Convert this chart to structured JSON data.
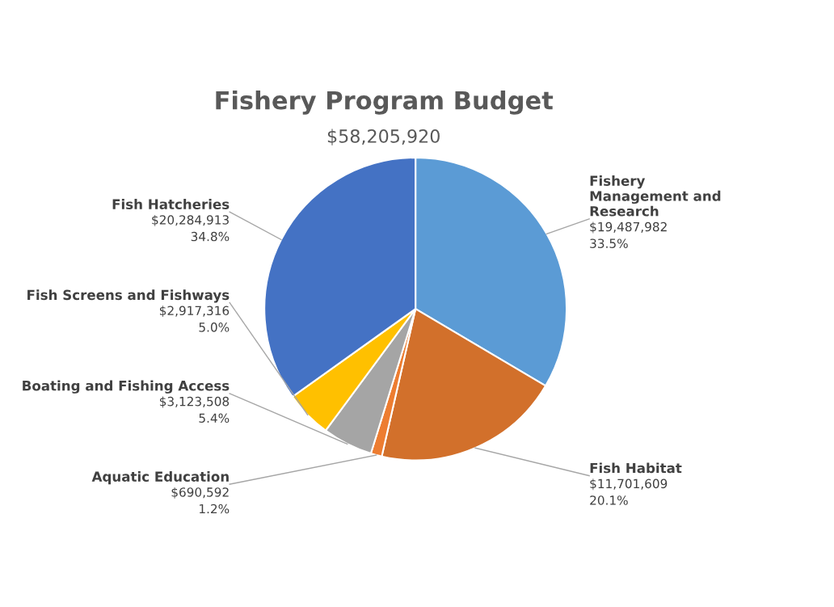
{
  "chart_data": {
    "type": "pie",
    "title": "Fishery Program Budget",
    "subtitle": "$58,205,920",
    "categories": [
      "Fishery\nManagement and\nResearch",
      "Fish Habitat",
      "Aquatic Education",
      "Boating and Fishing Access",
      "Fish Screens and Fishways",
      "Fish Hatcheries"
    ],
    "values": [
      19487982,
      11701609,
      690592,
      3123508,
      2917316,
      20284913
    ],
    "colors": [
      "#5b9bd5",
      "#d2702b",
      "#ed7d31",
      "#a5a5a5",
      "#ffc000",
      "#4472c4"
    ],
    "value_labels": [
      "$19,487,982\n33.5%",
      "$11,701,609\n20.1%",
      "$690,592\n1.2%",
      "$3,123,508\n5.4%",
      "$2,917,316\n5.0%",
      "$20,284,913\n34.8%"
    ],
    "legend": false
  }
}
